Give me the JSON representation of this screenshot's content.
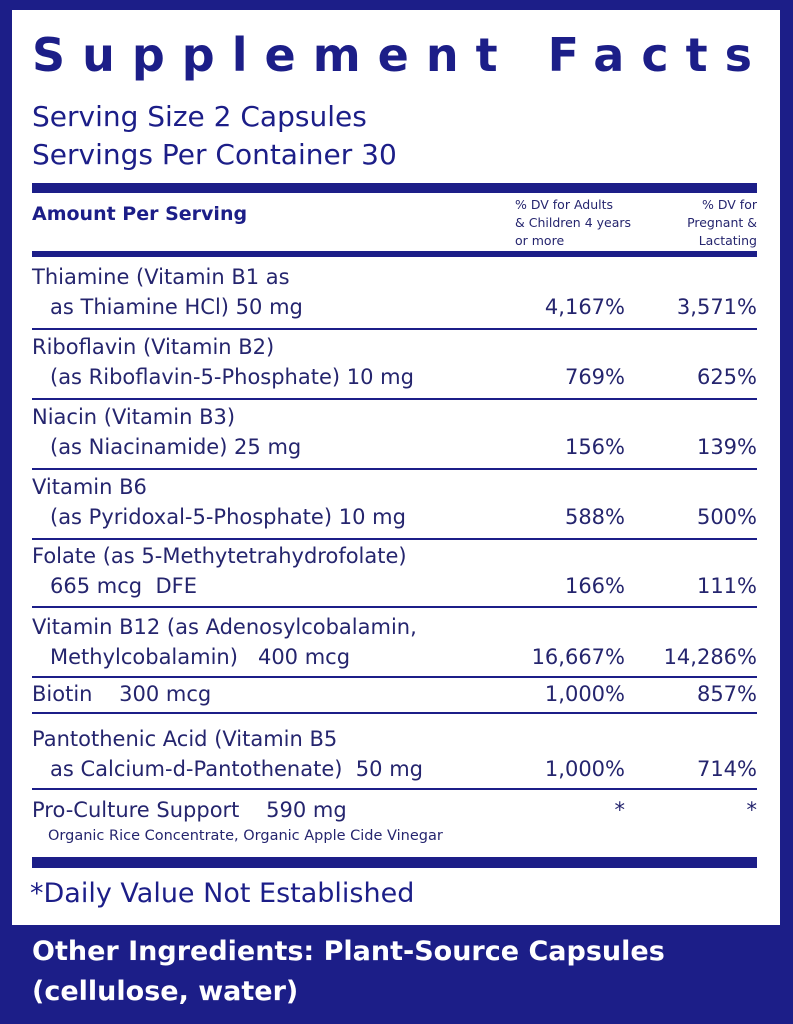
{
  "title": "Supplement Facts",
  "serving": [
    "Serving Size 2 Capsules",
    "Servings Per Container 30"
  ],
  "table": {
    "header": {
      "amount": "Amount Per Serving",
      "dv_adults": [
        "% DV for Adults",
        "& Children 4 years",
        "or more"
      ],
      "dv_pregnant": [
        "% DV for",
        "Pregnant &",
        "Lactating"
      ]
    },
    "rows": [
      {
        "lines": [
          "Thiamine (Vitamin B1 as",
          "as Thiamine HCl) 50 mg"
        ],
        "dv_adults": "4,167%",
        "dv_pregnant": "3,571%"
      },
      {
        "lines": [
          "Riboflavin (Vitamin B2)",
          "(as Riboflavin-5-Phosphate) 10 mg"
        ],
        "dv_adults": "769%",
        "dv_pregnant": "625%"
      },
      {
        "lines": [
          "Niacin (Vitamin B3)",
          "(as Niacinamide) 25 mg"
        ],
        "dv_adults": "156%",
        "dv_pregnant": "139%"
      },
      {
        "lines": [
          "Vitamin B6",
          "(as Pyridoxal-5-Phosphate) 10 mg"
        ],
        "dv_adults": "588%",
        "dv_pregnant": "500%"
      },
      {
        "lines": [
          "Folate (as 5-Methytetrahydrofolate)",
          "665 mcg  DFE"
        ],
        "dv_adults": "166%",
        "dv_pregnant": "111%"
      },
      {
        "lines": [
          "Vitamin B12 (as Adenosylcobalamin,",
          "Methylcobalamin)   400 mcg"
        ],
        "dv_adults": "16,667%",
        "dv_pregnant": "14,286%"
      },
      {
        "lines": [
          "Biotin    300 mcg"
        ],
        "dv_adults": "1,000%",
        "dv_pregnant": "857%"
      },
      {
        "lines": [
          "Pantothenic Acid (Vitamin B5",
          "as Calcium-d-Pantothenate)  50 mg"
        ],
        "dv_adults": "1,000%",
        "dv_pregnant": "714%"
      },
      {
        "lines": [
          "Pro-Culture Support    590 mg"
        ],
        "note": "Organic Rice Concentrate, Organic Apple Cide Vinegar",
        "dv_adults": "*",
        "dv_pregnant": "*"
      }
    ]
  },
  "footnote": "*Daily Value Not Established",
  "other_ingredients": [
    "Other Ingredients: Plant-Source Capsules",
    "(cellulose, water)"
  ]
}
